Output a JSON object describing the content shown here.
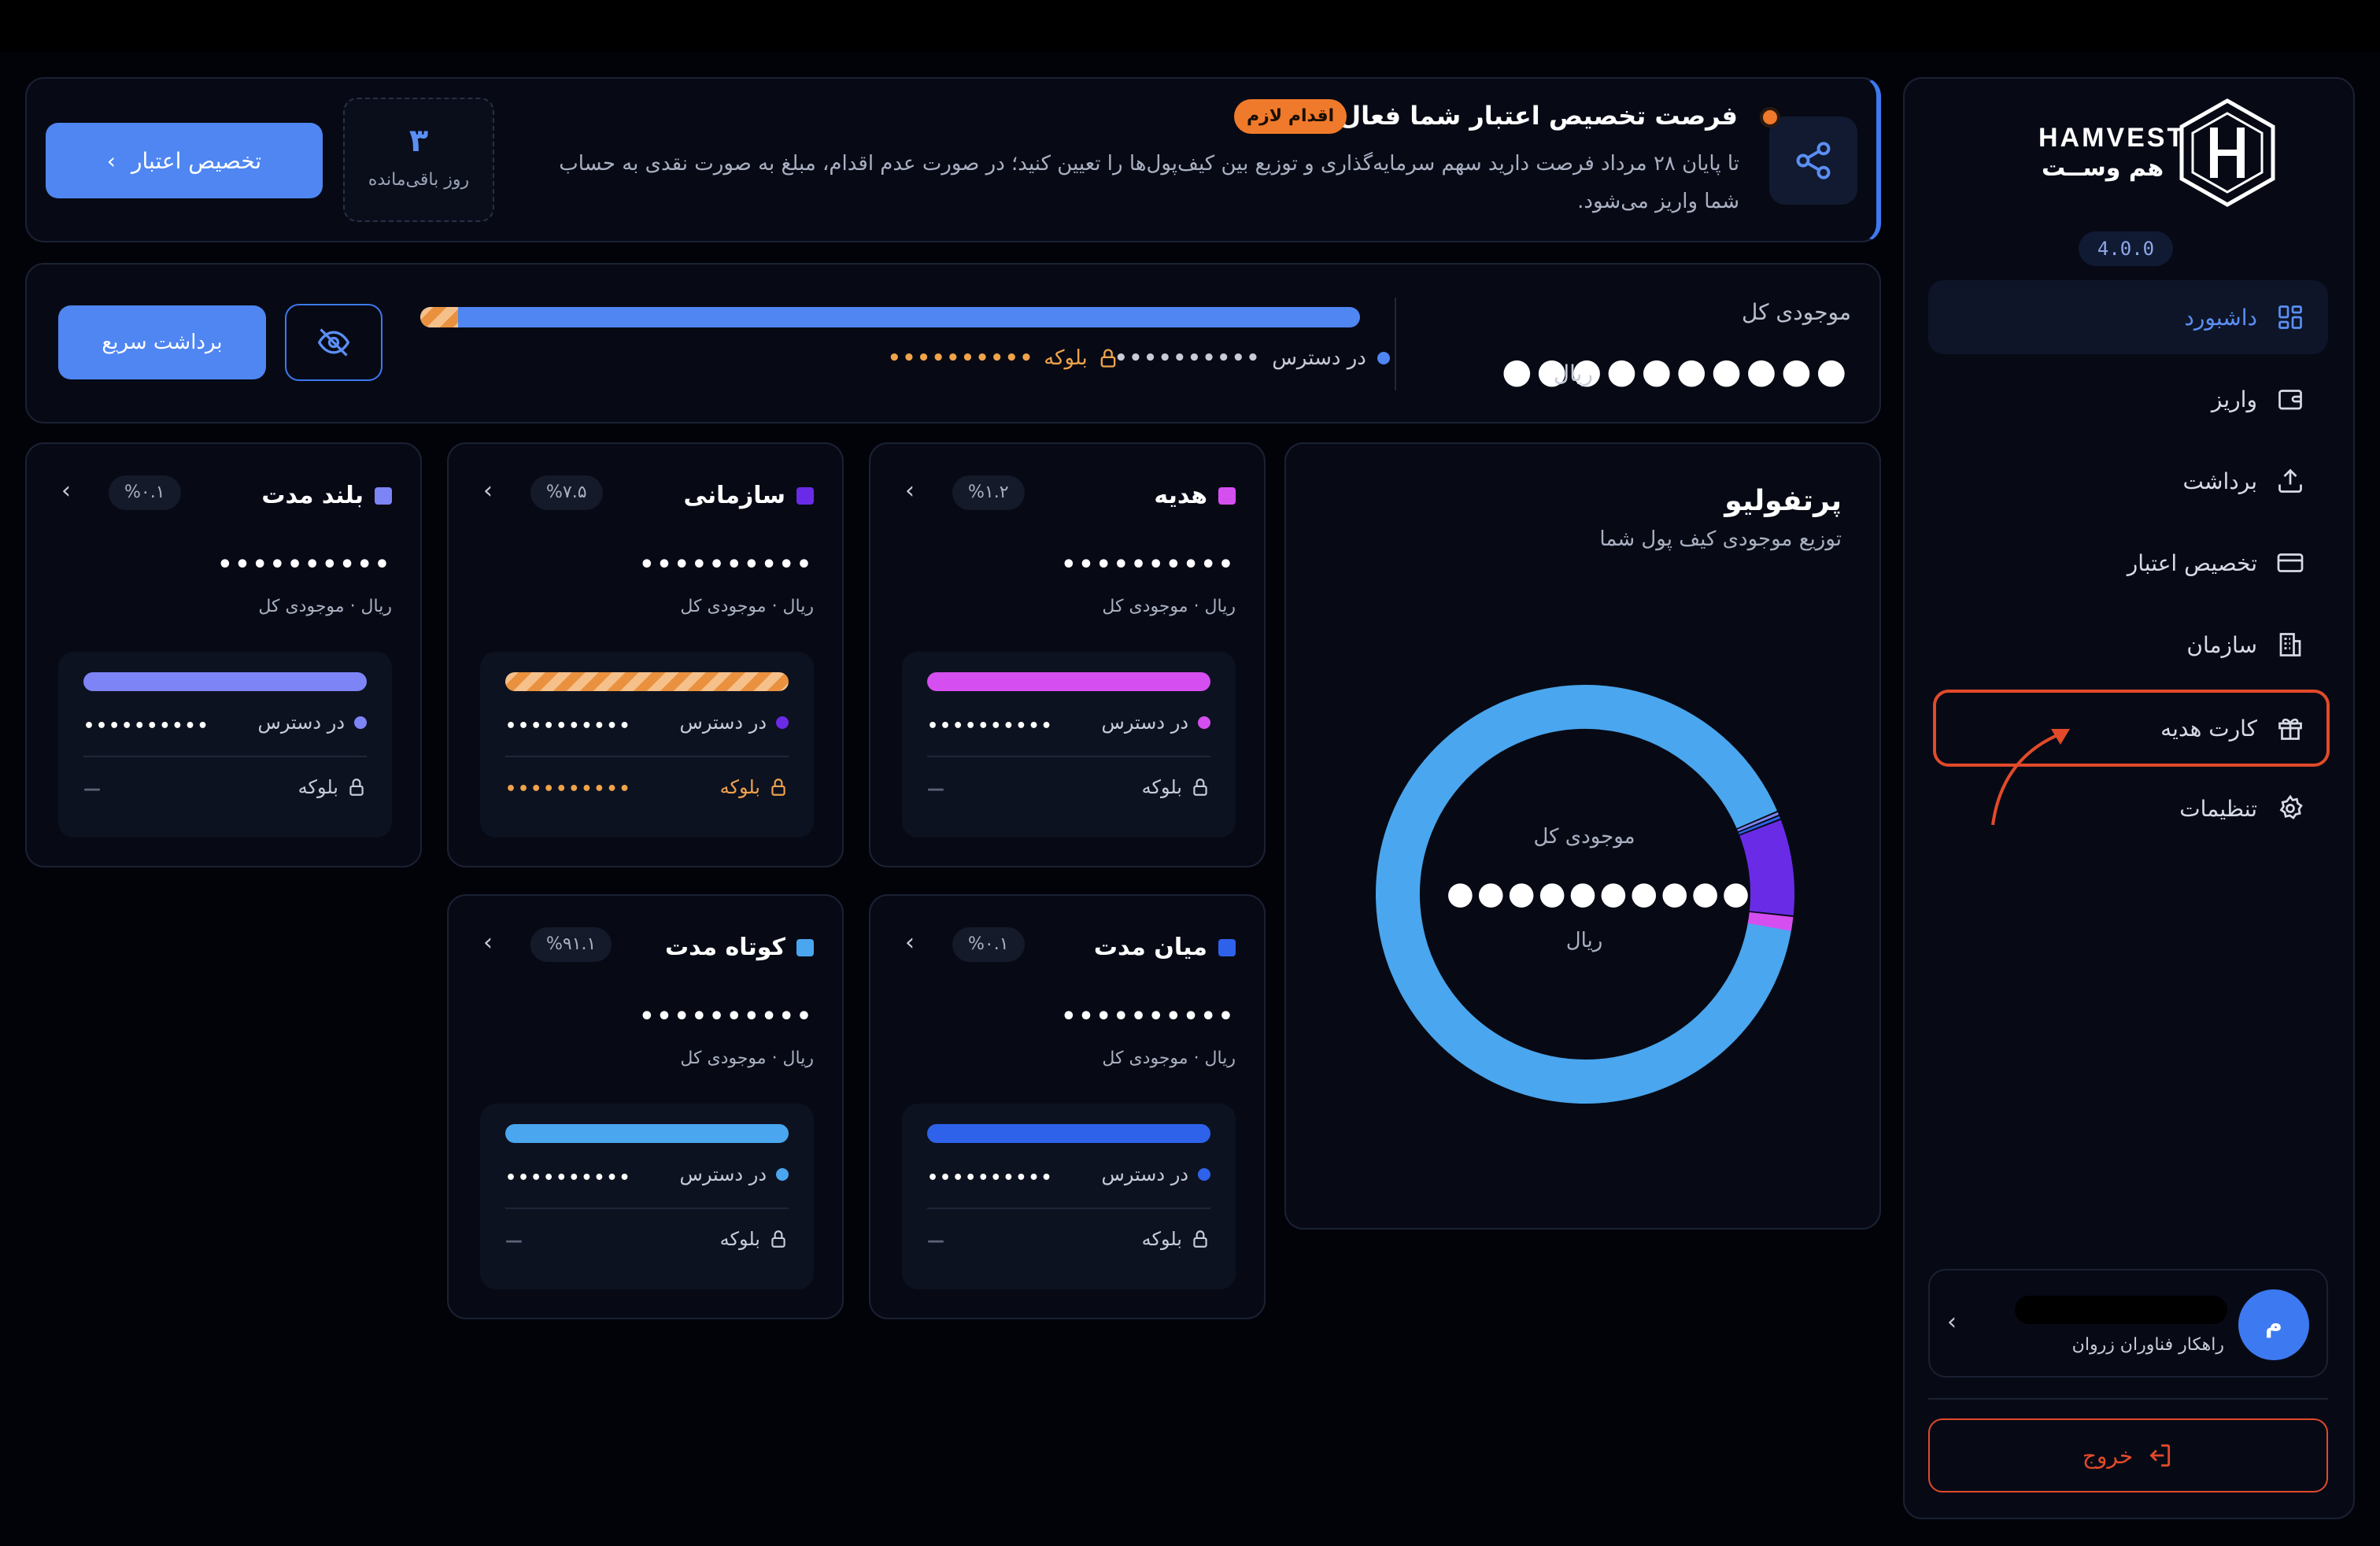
{
  "brand": {
    "name_en": "HAMVEST",
    "name_fa": "هم وســت",
    "version": "4.0.0"
  },
  "sidebar": {
    "items": [
      {
        "label": "داشبورد",
        "icon": "dashboard-icon",
        "active": true
      },
      {
        "label": "واریز",
        "icon": "wallet-icon"
      },
      {
        "label": "برداشت",
        "icon": "upload-icon"
      },
      {
        "label": "تخصیص اعتبار",
        "icon": "card-icon"
      },
      {
        "label": "سازمان",
        "icon": "building-icon"
      },
      {
        "label": "کارت هدیه",
        "icon": "gift-icon"
      },
      {
        "label": "تنظیمات",
        "icon": "gear-icon"
      }
    ]
  },
  "user": {
    "avatar_initial": "م",
    "organization": "راهکار فناوران زروان"
  },
  "logout": {
    "label": "خروج"
  },
  "notice": {
    "title": "فرصت تخصیص اعتبار شما فعال است",
    "badge": "اقدام لازم",
    "text": "تا پایان ۲۸ مرداد فرصت دارید سهم سرمایه‌گذاری و توزیع بین کیف‌پول‌ها را تعیین کنید؛ در صورت عدم اقدام، مبلغ به صورت نقدی به حساب شما واریز می‌شود.",
    "days_value": "۳",
    "days_label": "روز باقی‌مانده",
    "action_label": "تخصیص اعتبار"
  },
  "balance": {
    "title": "موجودی کل",
    "masked_value": "●●●●●●●●●●",
    "unit": "ریال",
    "available_label": "در دسترس",
    "available_value": "••••••••••",
    "blocked_label": "بلوکه",
    "blocked_value": "••••••••••",
    "blocked_fraction": 0.04,
    "quick_withdraw_label": "برداشت سریع"
  },
  "portfolio": {
    "title": "پرتفولیو",
    "subtitle": "توزیع موجودی کیف پول شما",
    "center_label": "موجودی کل",
    "center_value": "●●●●●●●●●●",
    "center_unit": "ریال"
  },
  "wallet_common": {
    "masked_value": "••••••••••",
    "sub": "ریال · موجودی کل",
    "available_label": "در دسترس",
    "blocked_label": "بلوکه",
    "empty_dash": "—"
  },
  "wallets": [
    {
      "name": "هدیه",
      "pct": "%۱.۲",
      "color": "#d54ff0",
      "blocked": false
    },
    {
      "name": "سازمانی",
      "pct": "%۷.۵",
      "color": "#6a2be6",
      "blocked": true
    },
    {
      "name": "بلند مدت",
      "pct": "%۰.۱",
      "color": "#7d84f5",
      "blocked": false
    },
    {
      "name": "میان مدت",
      "pct": "%۰.۱",
      "color": "#2f62ea",
      "blocked": false
    },
    {
      "name": "کوتاه مدت",
      "pct": "%۹۱.۱",
      "color": "#4aa6ee",
      "blocked": false
    }
  ],
  "chart_data": {
    "type": "pie",
    "categories": [
      "کوتاه مدت",
      "سازمانی",
      "هدیه",
      "بلند مدت",
      "میان مدت"
    ],
    "values": [
      91.1,
      7.5,
      1.2,
      0.1,
      0.1
    ],
    "colors": [
      "#4aa6ee",
      "#6a2be6",
      "#d54ff0",
      "#7d84f5",
      "#2f62ea"
    ]
  }
}
